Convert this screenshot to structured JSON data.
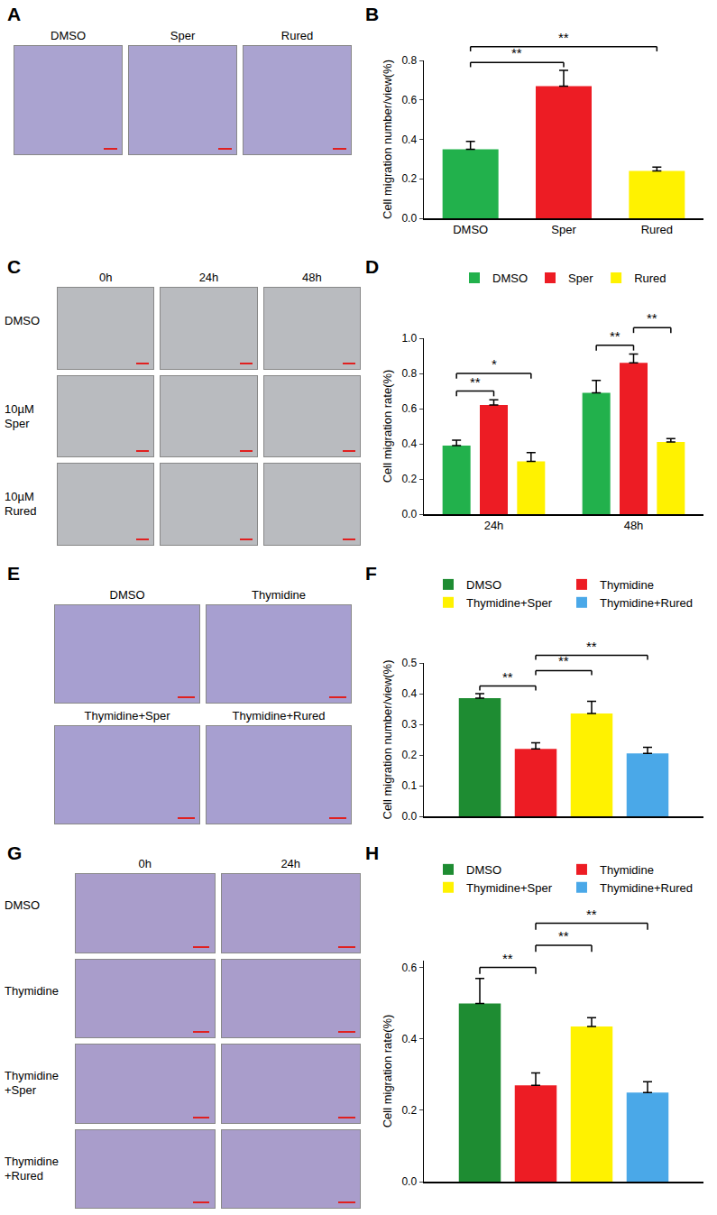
{
  "chart_data": [
    {
      "panel_label": "B",
      "type": "bar",
      "categories": [
        "DMSO",
        "Sper",
        "Rured"
      ],
      "series": [
        {
          "values": [
            0.35,
            0.67,
            0.24
          ],
          "errors": [
            0.04,
            0.08,
            0.02
          ],
          "colors": [
            "#22b14c",
            "#ed1c24",
            "#fff200"
          ]
        }
      ],
      "y_label": "Cell migration number/view(%)",
      "ylim": [
        0,
        0.8
      ],
      "yticks": [
        {
          "value": 0,
          "label": "0.0"
        },
        0.2,
        0.4,
        0.6,
        0.8
      ],
      "grid": false,
      "significance": [
        {
          "a": [
            0,
            0
          ],
          "b": [
            1,
            0
          ],
          "label": "**"
        },
        {
          "a": [
            0,
            0
          ],
          "b": [
            2,
            0
          ],
          "label": "**"
        }
      ]
    },
    {
      "panel_label": "D",
      "type": "bar",
      "categories": [
        "24h",
        "48h"
      ],
      "series": [
        {
          "name": "DMSO",
          "color": "#22b14c",
          "values": [
            0.39,
            0.69
          ],
          "errors": [
            0.03,
            0.07
          ]
        },
        {
          "name": "Sper",
          "color": "#ed1c24",
          "values": [
            0.62,
            0.86
          ],
          "errors": [
            0.03,
            0.05
          ]
        },
        {
          "name": "Rured",
          "color": "#fff200",
          "values": [
            0.3,
            0.41
          ],
          "errors": [
            0.05,
            0.02
          ]
        }
      ],
      "y_label": "Cell migration rate(%)",
      "ylim": [
        0,
        1.0
      ],
      "yticks": [
        {
          "value": 0,
          "label": "0.0"
        },
        0.2,
        0.4,
        0.6,
        0.8,
        {
          "value": 1,
          "label": "1.0"
        }
      ],
      "grid": false,
      "legend": "top",
      "significance": [
        {
          "a": [
            0,
            0
          ],
          "b": [
            0,
            1
          ],
          "label": "**"
        },
        {
          "a": [
            0,
            0
          ],
          "b": [
            0,
            2
          ],
          "label": "*"
        },
        {
          "a": [
            1,
            0
          ],
          "b": [
            1,
            1
          ],
          "label": "**"
        },
        {
          "a": [
            1,
            1
          ],
          "b": [
            1,
            2
          ],
          "label": "**"
        }
      ]
    },
    {
      "panel_label": "F",
      "type": "bar",
      "categories": [
        null
      ],
      "series": [
        {
          "name": "DMSO",
          "color": "#1e8c32",
          "values": [
            0.385
          ],
          "errors": [
            0.015
          ]
        },
        {
          "name": "Thymidine",
          "color": "#ed1c24",
          "values": [
            0.22
          ],
          "errors": [
            0.02
          ]
        },
        {
          "name": "Thymidine+Sper",
          "color": "#fff200",
          "values": [
            0.335
          ],
          "errors": [
            0.04
          ]
        },
        {
          "name": "Thymidine+Rured",
          "color": "#4aa8e8",
          "values": [
            0.205
          ],
          "errors": [
            0.02
          ]
        }
      ],
      "y_label": "Cell migration number/view(%)",
      "ylim": [
        0,
        0.5
      ],
      "yticks": [
        {
          "value": 0,
          "label": "0.0"
        },
        0.1,
        0.2,
        0.3,
        0.4,
        0.5
      ],
      "grid": false,
      "legend": "top",
      "tick_labels": "y",
      "significance": [
        {
          "a": [
            0,
            0
          ],
          "b": [
            0,
            1
          ],
          "label": "**"
        },
        {
          "a": [
            0,
            1
          ],
          "b": [
            0,
            2
          ],
          "label": "**"
        },
        {
          "a": [
            0,
            1
          ],
          "b": [
            0,
            3
          ],
          "label": "**"
        }
      ]
    },
    {
      "panel_label": "H",
      "type": "bar",
      "categories": [
        null
      ],
      "series": [
        {
          "name": "DMSO",
          "color": "#1e8c32",
          "values": [
            0.5
          ],
          "errors": [
            0.07
          ]
        },
        {
          "name": "Thymidine",
          "color": "#ed1c24",
          "values": [
            0.27
          ],
          "errors": [
            0.035
          ]
        },
        {
          "name": "Thymidine+Sper",
          "color": "#fff200",
          "values": [
            0.435
          ],
          "errors": [
            0.025
          ]
        },
        {
          "name": "Thymidine+Rured",
          "color": "#4aa8e8",
          "values": [
            0.25
          ],
          "errors": [
            0.03
          ]
        }
      ],
      "y_label": "Cell migration rate(%)",
      "ylim": [
        0,
        0.62
      ],
      "yticks": [
        {
          "value": 0,
          "label": "0.0"
        },
        0.2,
        0.4,
        0.6
      ],
      "grid": false,
      "legend": "top",
      "tick_labels": "y",
      "significance": [
        {
          "a": [
            0,
            0
          ],
          "b": [
            0,
            1
          ],
          "label": "**"
        },
        {
          "a": [
            0,
            1
          ],
          "b": [
            0,
            2
          ],
          "label": "**"
        },
        {
          "a": [
            0,
            1
          ],
          "b": [
            0,
            3
          ],
          "label": "**"
        }
      ]
    }
  ],
  "image_panels": [
    {
      "panel_label": "A",
      "grid": [
        [
          "DMSO",
          "Sper",
          "Rured"
        ]
      ]
    },
    {
      "panel_label": "C",
      "columns": [
        "0h",
        "24h",
        "48h"
      ],
      "rows": [
        "DMSO",
        "10µM Sper",
        "10µM Rured"
      ]
    },
    {
      "panel_label": "E",
      "grid": [
        [
          "DMSO",
          "Thymidine"
        ],
        [
          "Thymidine+Sper",
          "Thymidine+Rured"
        ]
      ]
    },
    {
      "panel_label": "G",
      "columns": [
        "0h",
        "24h"
      ],
      "rows": [
        "DMSO",
        "Thymidine",
        "Thymidine +Sper",
        "Thymidine +Rured"
      ]
    }
  ]
}
